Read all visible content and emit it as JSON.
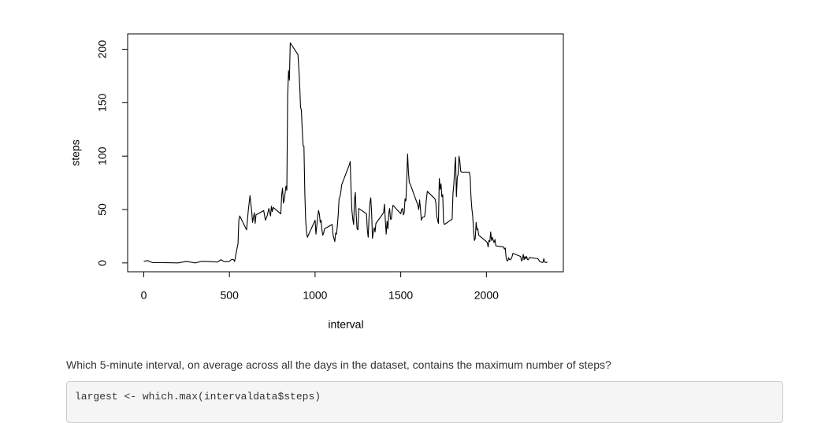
{
  "chart_data": {
    "type": "line",
    "x_label": "interval",
    "y_label": "steps",
    "color": "#000000",
    "xlim": [
      -94.2,
      2449.2
    ],
    "ylim": [
      -8.25,
      214.42
    ],
    "xticks": [
      0,
      500,
      1000,
      1500,
      2000
    ],
    "yticks": [
      0,
      50,
      100,
      150,
      200
    ],
    "x": [
      0,
      25,
      50,
      100,
      150,
      200,
      250,
      300,
      340,
      400,
      430,
      450,
      470,
      500,
      510,
      520,
      525,
      530,
      540,
      550,
      555,
      560,
      600,
      610,
      615,
      620,
      630,
      635,
      645,
      650,
      655,
      700,
      710,
      720,
      730,
      740,
      745,
      750,
      755,
      800,
      805,
      810,
      815,
      820,
      830,
      835,
      840,
      845,
      850,
      855,
      900,
      905,
      910,
      915,
      920,
      925,
      930,
      935,
      940,
      945,
      950,
      955,
      1000,
      1005,
      1010,
      1015,
      1020,
      1025,
      1030,
      1035,
      1040,
      1045,
      1050,
      1055,
      1100,
      1105,
      1110,
      1115,
      1120,
      1125,
      1130,
      1135,
      1140,
      1145,
      1150,
      1155,
      1200,
      1205,
      1210,
      1215,
      1220,
      1225,
      1230,
      1235,
      1240,
      1245,
      1250,
      1255,
      1300,
      1305,
      1310,
      1315,
      1320,
      1325,
      1330,
      1335,
      1340,
      1345,
      1350,
      1355,
      1400,
      1405,
      1410,
      1415,
      1420,
      1425,
      1430,
      1435,
      1440,
      1445,
      1450,
      1455,
      1500,
      1505,
      1510,
      1515,
      1520,
      1525,
      1530,
      1535,
      1540,
      1545,
      1550,
      1555,
      1600,
      1605,
      1610,
      1615,
      1620,
      1625,
      1630,
      1635,
      1640,
      1645,
      1650,
      1655,
      1700,
      1705,
      1710,
      1715,
      1720,
      1725,
      1730,
      1735,
      1740,
      1745,
      1750,
      1755,
      1800,
      1805,
      1810,
      1815,
      1820,
      1825,
      1830,
      1835,
      1840,
      1845,
      1850,
      1855,
      1900,
      1905,
      1910,
      1915,
      1920,
      1925,
      1930,
      1935,
      1940,
      1945,
      1950,
      1955,
      2000,
      2005,
      2010,
      2015,
      2020,
      2025,
      2030,
      2035,
      2040,
      2045,
      2050,
      2055,
      2100,
      2105,
      2110,
      2115,
      2120,
      2125,
      2130,
      2135,
      2140,
      2145,
      2150,
      2155,
      2200,
      2205,
      2210,
      2215,
      2220,
      2225,
      2230,
      2235,
      2240,
      2245,
      2250,
      2255,
      2300,
      2305,
      2310,
      2315,
      2320,
      2325,
      2330,
      2335,
      2340,
      2345,
      2350,
      2355
    ],
    "values": [
      1.7,
      2.1,
      0.3,
      0.3,
      0.2,
      0,
      1.5,
      0,
      1.6,
      1.2,
      0.8,
      3,
      1.2,
      1.5,
      3,
      3.3,
      2.9,
      1.3,
      10,
      18,
      40,
      44,
      31,
      49,
      56,
      63,
      48,
      38,
      47,
      37,
      45,
      49,
      40,
      44,
      51,
      44,
      53,
      48,
      52,
      46,
      64,
      70,
      56,
      59,
      72,
      68,
      158,
      180,
      171,
      206,
      195,
      182,
      167,
      146,
      143,
      124,
      110,
      109,
      66,
      40,
      29,
      24,
      40,
      27,
      35,
      43,
      49,
      46,
      38,
      40,
      31,
      26,
      28,
      32,
      36,
      26,
      23,
      20,
      28,
      27,
      35,
      45,
      60,
      62,
      66,
      73,
      92,
      95,
      68,
      49,
      41,
      36,
      59,
      66,
      45,
      32,
      31,
      51,
      46,
      31,
      24,
      43,
      56,
      61,
      47,
      23,
      29,
      33,
      29,
      37,
      47,
      55,
      40,
      27,
      39,
      32,
      46,
      51,
      41,
      41,
      49,
      54,
      46,
      50,
      51,
      45,
      47,
      60,
      58,
      78,
      102,
      85,
      75,
      74,
      54,
      50,
      59,
      51,
      40,
      42,
      43,
      43,
      44,
      51,
      60,
      67,
      60,
      56,
      44,
      40,
      37,
      79,
      69,
      74,
      62,
      64,
      38,
      36,
      41,
      65,
      74,
      89,
      99,
      62,
      80,
      83,
      100,
      95,
      86,
      85,
      85,
      81,
      62,
      51,
      44,
      30,
      21,
      23,
      38,
      31,
      32,
      26,
      20,
      19,
      15,
      21,
      20,
      29,
      21,
      24,
      21,
      19,
      22,
      16,
      15,
      13,
      14,
      5,
      2,
      2,
      5,
      3,
      3,
      4,
      6,
      9,
      6,
      2,
      3,
      8,
      3,
      6,
      4,
      6,
      3,
      3,
      5,
      5,
      4,
      3,
      1.5,
      1,
      0.9,
      0.4,
      0.5,
      4,
      0.9,
      0.5,
      0.2,
      1.1
    ]
  },
  "question": "Which 5-minute interval, on average across all the days in the dataset, contains the maximum number of steps?",
  "code": "largest <- which.max(intervaldata$steps)"
}
